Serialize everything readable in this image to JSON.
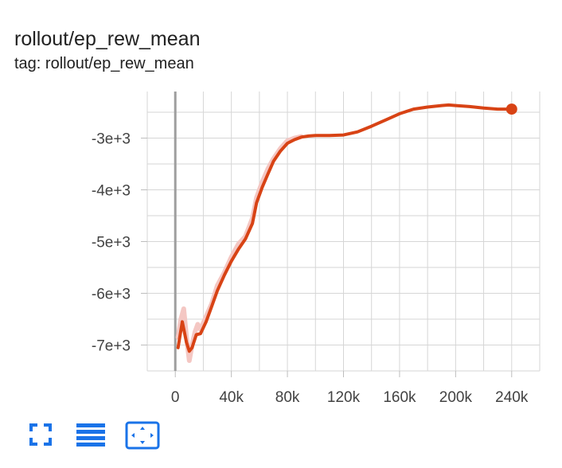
{
  "card": {
    "title": "rollout/ep_rew_mean",
    "subtitle": "tag: rollout/ep_rew_mean"
  },
  "toolbar": {
    "icons": [
      "fullscreen-icon",
      "toggle-log-scale-icon",
      "fit-domain-icon"
    ],
    "accent": "#1a73e8"
  },
  "chart_data": {
    "type": "line",
    "title": "rollout/ep_rew_mean",
    "xlabel": "",
    "ylabel": "",
    "xlim": [
      -20000,
      260000
    ],
    "ylim": [
      -7500,
      -2100
    ],
    "x_ticks": [
      {
        "value": 0,
        "label": "0"
      },
      {
        "value": 40000,
        "label": "40k"
      },
      {
        "value": 80000,
        "label": "80k"
      },
      {
        "value": 120000,
        "label": "120k"
      },
      {
        "value": 160000,
        "label": "160k"
      },
      {
        "value": 200000,
        "label": "200k"
      },
      {
        "value": 240000,
        "label": "240k"
      }
    ],
    "y_ticks": [
      {
        "value": -7000,
        "label": "-7e+3"
      },
      {
        "value": -6000,
        "label": "-6e+3"
      },
      {
        "value": -5000,
        "label": "-5e+3"
      },
      {
        "value": -4000,
        "label": "-4e+3"
      },
      {
        "value": -3000,
        "label": "-3e+3"
      }
    ],
    "grid": true,
    "series": [
      {
        "color": "#d84315",
        "raw_color": "#f4c7c3",
        "x": [
          2000,
          5000,
          8000,
          10000,
          12000,
          15000,
          18000,
          22000,
          26000,
          30000,
          35000,
          40000,
          45000,
          50000,
          55000,
          58000,
          62000,
          66000,
          70000,
          75000,
          80000,
          85000,
          90000,
          95000,
          100000,
          110000,
          120000,
          130000,
          140000,
          150000,
          160000,
          170000,
          180000,
          190000,
          195000,
          200000,
          210000,
          220000,
          230000,
          240000
        ],
        "y": [
          -7050,
          -6550,
          -6950,
          -7120,
          -7050,
          -6800,
          -6780,
          -6550,
          -6250,
          -5950,
          -5650,
          -5380,
          -5150,
          -4950,
          -4650,
          -4250,
          -3950,
          -3700,
          -3450,
          -3250,
          -3100,
          -3030,
          -2980,
          -2960,
          -2950,
          -2950,
          -2940,
          -2880,
          -2770,
          -2650,
          -2530,
          -2440,
          -2400,
          -2370,
          -2360,
          -2370,
          -2390,
          -2420,
          -2440,
          -2440
        ],
        "raw_x": [
          2000,
          4000,
          6000,
          8000,
          10000,
          12000,
          14000,
          16000,
          18000,
          22000,
          26000,
          30000,
          35000,
          40000,
          45000,
          50000,
          55000,
          58000,
          62000,
          66000,
          70000,
          75000,
          80000,
          85000,
          90000
        ],
        "raw_y": [
          -6850,
          -6500,
          -6300,
          -6850,
          -7300,
          -7000,
          -6750,
          -6600,
          -6700,
          -6450,
          -6200,
          -5850,
          -5600,
          -5300,
          -5050,
          -4900,
          -4550,
          -4150,
          -3850,
          -3600,
          -3400,
          -3200,
          -3050,
          -3000,
          -2970
        ]
      }
    ]
  }
}
